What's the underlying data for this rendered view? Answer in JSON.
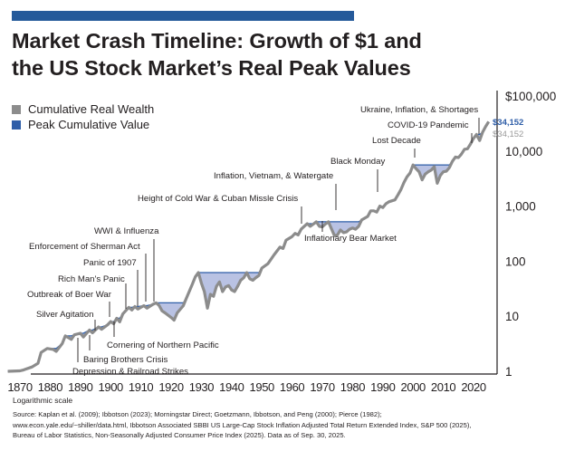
{
  "header": {
    "title_line1": "Market Crash Timeline: Growth of $1 and",
    "title_line2": "the US Stock Market’s Real Peak Values"
  },
  "colors": {
    "top_bar": "#255a9a",
    "wealth_line": "#8c8c8c",
    "peak_line": "#2f5ea8",
    "drawdown_fill": "#b9c2e3",
    "end_label_peak": "#2f5ea8",
    "end_label_wealth": "#9a9a9a"
  },
  "footer": {
    "scale_note": "Logarithmic scale",
    "source_line1": "Source: Kaplan et al. (2009); Ibbotson (2023); Morningstar Direct; Goetzmann, Ibbotson, and Peng (2000); Pierce (1982);",
    "source_line2": "www.econ.yale.edu/~shiller/data.html, Ibbotson Associated SBBI US Large-Cap Stock Inflation Adjusted Total Return Extended Index, S&P 500 (2025),",
    "source_line3": "Bureau of Labor Statistics, Non-Seasonally Adjusted Consumer Price Index (2025). Data as of Sep. 30, 2025."
  },
  "chart_data": {
    "type": "line",
    "title": "Market Crash Timeline: Growth of $1 and the US Stock Market’s Real Peak Values",
    "xlabel": "",
    "ylabel": "",
    "yscale": "log",
    "xlim": [
      1865,
      2026
    ],
    "ylim": [
      1,
      100000
    ],
    "grid": false,
    "legend_position": "top-left",
    "x_ticks": [
      "1870",
      "1880",
      "1890",
      "1900",
      "1910",
      "1920",
      "1930",
      "1940",
      "1950",
      "1960",
      "1970",
      "1980",
      "1990",
      "2000",
      "2010",
      "2020"
    ],
    "y_ticks": [
      "$100,000",
      "10,000",
      "1,000",
      "100",
      "10",
      "1"
    ],
    "legend": [
      {
        "name": "Cumulative Real Wealth",
        "color": "#8c8c8c"
      },
      {
        "name": "Peak Cumulative Value",
        "color": "#2f5ea8"
      }
    ],
    "end_labels": {
      "peak": "$34,152",
      "wealth": "$34,152"
    },
    "series": [
      {
        "name": "Cumulative Real Wealth",
        "x": [
          1866,
          1870,
          1871,
          1872,
          1874,
          1876,
          1877,
          1879,
          1881,
          1882,
          1884,
          1885,
          1887,
          1888,
          1890,
          1891,
          1893,
          1894,
          1896,
          1897,
          1899,
          1900,
          1901,
          1902,
          1903,
          1904,
          1906,
          1907,
          1908,
          1909,
          1911,
          1912,
          1914,
          1915,
          1916,
          1917,
          1918,
          1920,
          1921,
          1922,
          1924,
          1925,
          1927,
          1928,
          1929,
          1930,
          1931,
          1932,
          1933,
          1934,
          1935,
          1936,
          1937,
          1938,
          1939,
          1940,
          1941,
          1942,
          1943,
          1944,
          1945,
          1946,
          1947,
          1948,
          1949,
          1950,
          1952,
          1954,
          1956,
          1957,
          1958,
          1960,
          1961,
          1962,
          1963,
          1964,
          1965,
          1966,
          1967,
          1968,
          1969,
          1970,
          1971,
          1972,
          1973,
          1974,
          1975,
          1976,
          1977,
          1978,
          1979,
          1980,
          1981,
          1982,
          1983,
          1985,
          1986,
          1987,
          1988,
          1989,
          1990,
          1991,
          1992,
          1994,
          1995,
          1996,
          1997,
          1998,
          1999,
          2000,
          2001,
          2002,
          2003,
          2004,
          2005,
          2006,
          2007,
          2008,
          2009,
          2010,
          2011,
          2012,
          2013,
          2014,
          2015,
          2016,
          2017,
          2018,
          2019,
          2020,
          2021,
          2022,
          2023,
          2024,
          2025
        ],
        "values": [
          1,
          1.02,
          1.05,
          1.1,
          1.2,
          1.4,
          2.2,
          2.6,
          2.5,
          2.3,
          3.2,
          4.4,
          3.8,
          4.6,
          4.9,
          4.2,
          5.6,
          5.0,
          6.4,
          5.8,
          7.0,
          8.0,
          7.3,
          9.2,
          7.9,
          11.0,
          14.5,
          13.0,
          15.0,
          13.5,
          15.6,
          14.0,
          16.5,
          17.5,
          15.8,
          12.5,
          11.5,
          9.5,
          8.5,
          11.5,
          15.5,
          21,
          38,
          52,
          62,
          40,
          28,
          14,
          25,
          23,
          35,
          42,
          28,
          34,
          36,
          30,
          28,
          35,
          45,
          50,
          62,
          48,
          45,
          50,
          55,
          75,
          90,
          130,
          180,
          170,
          240,
          280,
          320,
          300,
          380,
          430,
          480,
          430,
          470,
          520,
          430,
          420,
          470,
          520,
          390,
          290,
          300,
          370,
          330,
          340,
          380,
          400,
          380,
          430,
          560,
          650,
          820,
          820,
          780,
          1000,
          940,
          1100,
          1200,
          1300,
          1600,
          2000,
          2700,
          3400,
          4000,
          5600,
          4800,
          4200,
          3000,
          3800,
          4200,
          4500,
          5200,
          2600,
          3600,
          4200,
          4300,
          5000,
          6500,
          7800,
          7600,
          8800,
          10800,
          11000,
          13500,
          17000,
          20000,
          15500,
          22000,
          28000,
          34152
        ]
      },
      {
        "name": "Peak Cumulative Value",
        "x": [
          1866,
          1870,
          1871,
          1872,
          1874,
          1876,
          1877,
          1879,
          1881,
          1882,
          1884,
          1885,
          1887,
          1888,
          1890,
          1891,
          1893,
          1894,
          1896,
          1897,
          1899,
          1900,
          1901,
          1902,
          1903,
          1904,
          1906,
          1907,
          1908,
          1909,
          1911,
          1912,
          1914,
          1915,
          1916,
          1917,
          1918,
          1920,
          1921,
          1922,
          1924,
          1925,
          1927,
          1928,
          1929,
          1930,
          1931,
          1932,
          1933,
          1934,
          1935,
          1936,
          1937,
          1938,
          1939,
          1940,
          1941,
          1942,
          1943,
          1944,
          1945,
          1946,
          1947,
          1948,
          1949,
          1950,
          1952,
          1954,
          1956,
          1957,
          1958,
          1960,
          1961,
          1962,
          1963,
          1964,
          1965,
          1966,
          1967,
          1968,
          1969,
          1970,
          1971,
          1972,
          1973,
          1974,
          1975,
          1976,
          1977,
          1978,
          1979,
          1980,
          1981,
          1982,
          1983,
          1985,
          1986,
          1987,
          1988,
          1989,
          1990,
          1991,
          1992,
          1994,
          1995,
          1996,
          1997,
          1998,
          1999,
          2000,
          2001,
          2002,
          2003,
          2004,
          2005,
          2006,
          2007,
          2008,
          2009,
          2010,
          2011,
          2012,
          2013,
          2014,
          2015,
          2016,
          2017,
          2018,
          2019,
          2020,
          2021,
          2022,
          2023,
          2024,
          2025
        ],
        "values": [
          1,
          1.02,
          1.05,
          1.1,
          1.2,
          1.4,
          2.2,
          2.6,
          2.6,
          2.6,
          3.2,
          4.4,
          4.4,
          4.6,
          4.9,
          4.9,
          5.6,
          5.6,
          6.4,
          6.4,
          7.0,
          8.0,
          8.0,
          9.2,
          9.2,
          11.0,
          14.5,
          14.5,
          15.0,
          15.0,
          15.6,
          15.6,
          16.5,
          17.5,
          17.5,
          17.5,
          17.5,
          17.5,
          17.5,
          17.5,
          17.5,
          21,
          38,
          52,
          62,
          62,
          62,
          62,
          62,
          62,
          62,
          62,
          62,
          62,
          62,
          62,
          62,
          62,
          62,
          62,
          62,
          62,
          62,
          62,
          62,
          75,
          90,
          130,
          180,
          180,
          240,
          280,
          320,
          320,
          380,
          430,
          480,
          480,
          480,
          520,
          520,
          520,
          520,
          520,
          520,
          520,
          520,
          520,
          520,
          520,
          520,
          520,
          520,
          520,
          560,
          650,
          820,
          820,
          820,
          1000,
          1000,
          1100,
          1200,
          1300,
          1600,
          2000,
          2700,
          3400,
          4000,
          5600,
          5600,
          5600,
          5600,
          5600,
          5600,
          5600,
          5600,
          5600,
          5600,
          5600,
          5600,
          5600,
          6500,
          7800,
          7800,
          8800,
          10800,
          11000,
          13500,
          17000,
          20000,
          20000,
          22000,
          28000,
          34152
        ]
      }
    ],
    "annotations": [
      {
        "label": "Depression & Railroad Strikes",
        "year": 1873
      },
      {
        "label": "Baring Brothers Crisis",
        "year": 1890
      },
      {
        "label": "Silver Agitation",
        "year": 1896
      },
      {
        "label": "Cornering of Northern Pacific",
        "year": 1901
      },
      {
        "label": "Outbreak of Boer War",
        "year": 1899
      },
      {
        "label": "Rich Man's Panic",
        "year": 1903
      },
      {
        "label": "Panic of 1907",
        "year": 1906
      },
      {
        "label": "Enforcement of Sherman Act",
        "year": 1911
      },
      {
        "label": "WWI & Influenza",
        "year": 1916
      },
      {
        "label": "Height of Cold War & Cuban Missle Crisis",
        "year": 1961
      },
      {
        "label": "Inflationary Bear Market",
        "year": 1968
      },
      {
        "label": "Inflation, Vietnam, & Watergate",
        "year": 1973
      },
      {
        "label": "Black Monday",
        "year": 1987
      },
      {
        "label": "Lost Decade",
        "year": 2000
      },
      {
        "label": "COVID-19 Pandemic",
        "year": 2020
      },
      {
        "label": "Ukraine, Inflation, & Shortages",
        "year": 2022
      }
    ]
  }
}
